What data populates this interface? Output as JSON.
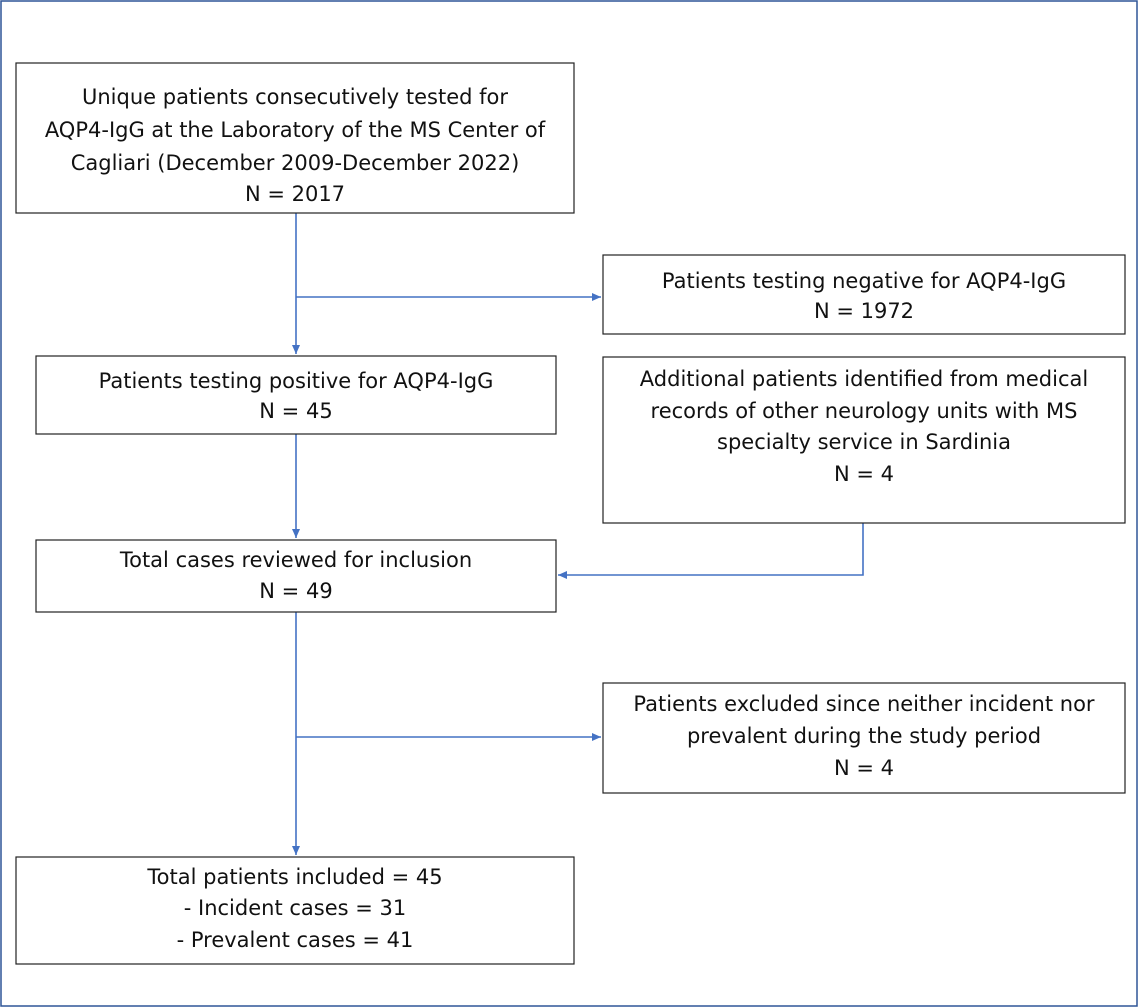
{
  "nodes": [
    {
      "lines": [
        "Unique patients consecutively tested for",
        "AQP4-IgG at the Laboratory of the MS Center of",
        "Cagliari (December 2009-December 2022)",
        "N = 2017"
      ]
    },
    {
      "lines": [
        "Patients testing negative for AQP4-IgG",
        "N = 1972"
      ]
    },
    {
      "lines": [
        "Patients testing positive for AQP4-IgG",
        "N = 45"
      ]
    },
    {
      "lines": [
        "Additional patients identified from medical",
        "records of other neurology units with MS",
        "specialty service in Sardinia",
        "N = 4"
      ]
    },
    {
      "lines": [
        "Total cases reviewed for inclusion",
        "N = 49"
      ]
    },
    {
      "lines": [
        "Patients excluded since neither incident nor",
        "prevalent during the study period",
        "N = 4"
      ]
    },
    {
      "lines": [
        "Total patients included = 45",
        "- Incident cases = 31",
        "- Prevalent cases = 41"
      ]
    }
  ]
}
